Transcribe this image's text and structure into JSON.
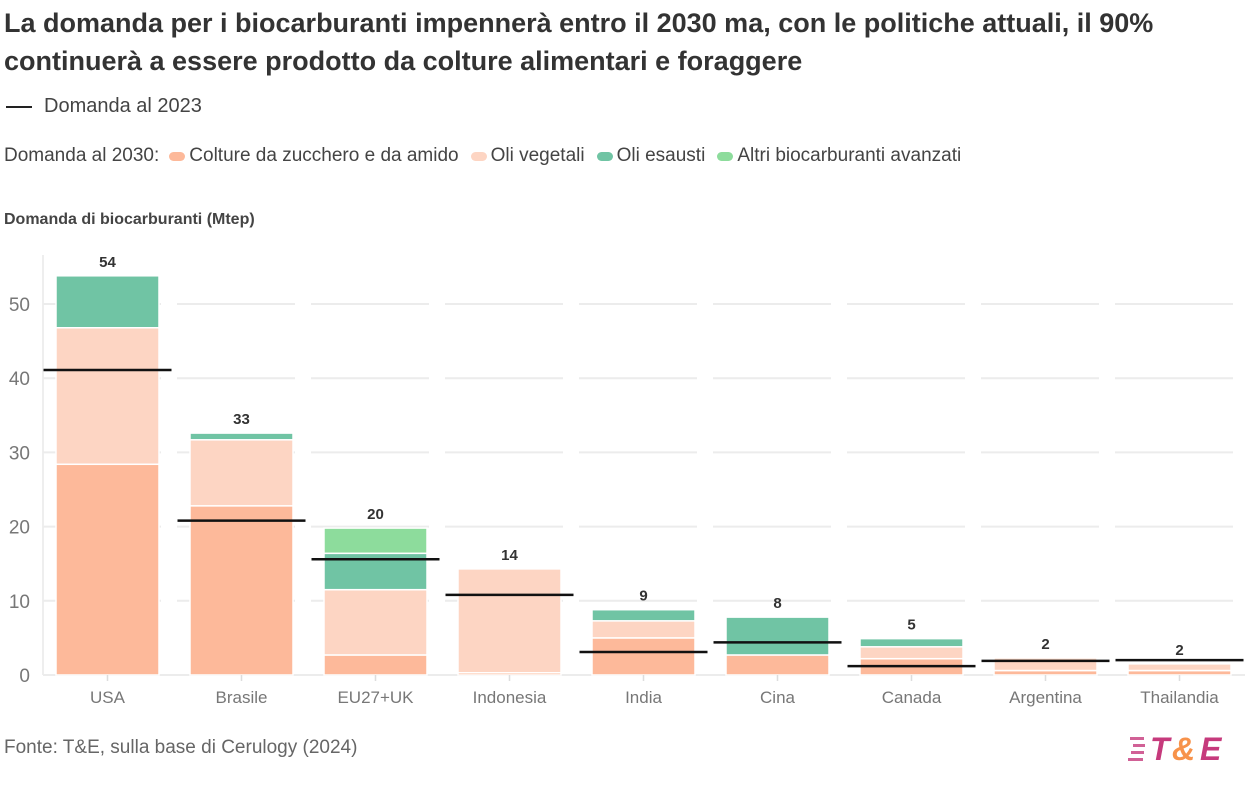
{
  "title": "La domanda per i biocarburanti impennerà entro il 2030 ma, con le politiche attuali, il 90% continuerà a essere prodotto da colture alimentari e foraggere",
  "legend_2023": "Domanda al 2023",
  "legend_2030_label": "Domanda al 2030:",
  "source": "Fonte: T&E, sulla base di Cerulogy (2024)",
  "logo_text": "T&E",
  "chart_data": {
    "type": "bar",
    "stacked": true,
    "ylabel": "Domanda di biocarburanti (Mtep)",
    "ylim": [
      0,
      56
    ],
    "yticks": [
      0,
      10,
      20,
      30,
      40,
      50
    ],
    "grid": true,
    "categories": [
      "USA",
      "Brasile",
      "EU27+UK",
      "Indonesia",
      "India",
      "Cina",
      "Canada",
      "Argentina",
      "Thailandia"
    ],
    "series": [
      {
        "name": "Colture da zucchero e da amido",
        "color": "#fdb99a",
        "values": [
          28.4,
          22.8,
          2.7,
          0.3,
          5.0,
          2.7,
          2.2,
          0.6,
          0.6
        ]
      },
      {
        "name": "Oli vegetali",
        "color": "#fdd5c3",
        "values": [
          18.4,
          8.9,
          8.8,
          14.0,
          2.3,
          0,
          1.6,
          1.7,
          0.9
        ]
      },
      {
        "name": "Oli esausti",
        "color": "#70c4a4",
        "values": [
          7.0,
          0.9,
          4.9,
          0,
          1.5,
          5.1,
          1.1,
          0,
          0
        ]
      },
      {
        "name": "Altri biocarburanti avanzati",
        "color": "#8ddc9c",
        "values": [
          0,
          0,
          3.4,
          0,
          0,
          0,
          0,
          0,
          0
        ]
      }
    ],
    "totals_labels": [
      "54",
      "33",
      "20",
      "14",
      "9",
      "8",
      "5",
      "2",
      "2"
    ],
    "demand_2023": [
      41.1,
      20.8,
      15.6,
      10.8,
      3.1,
      4.4,
      1.2,
      1.9,
      2.0
    ]
  }
}
